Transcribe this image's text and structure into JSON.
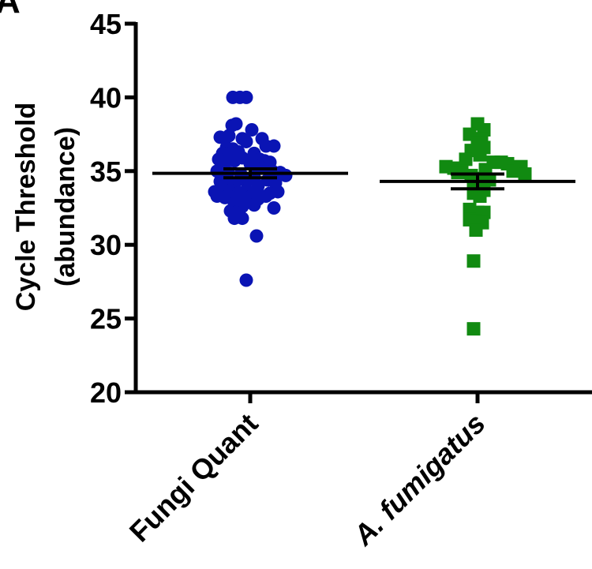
{
  "panel_letter": "A",
  "chart_data": {
    "type": "scatter",
    "ylabel_line1": "Cycle Threshold",
    "ylabel_line2": "(abundance)",
    "ylim": [
      20,
      45
    ],
    "yticks": [
      20,
      25,
      30,
      35,
      40,
      45
    ],
    "categories": [
      "Fungi Quant",
      "A. fumigatus"
    ],
    "series": [
      {
        "name": "Fungi Quant",
        "marker": "circle",
        "color": "#0a14b4",
        "mean": 34.85,
        "sem": 0.3,
        "points": [
          [
            -0.22,
            40.0
          ],
          [
            -0.13,
            40.0
          ],
          [
            -0.05,
            40.0
          ],
          [
            -0.23,
            38.1
          ],
          [
            -0.18,
            38.2
          ],
          [
            0.02,
            37.8
          ],
          [
            -0.38,
            37.3
          ],
          [
            -0.27,
            37.4
          ],
          [
            -0.1,
            37.2
          ],
          [
            -0.05,
            37.0
          ],
          [
            0.15,
            37.2
          ],
          [
            -0.3,
            36.6
          ],
          [
            -0.22,
            36.5
          ],
          [
            0.2,
            36.7
          ],
          [
            0.3,
            36.7
          ],
          [
            -0.35,
            36.2
          ],
          [
            -0.25,
            36.2
          ],
          [
            -0.15,
            36.3
          ],
          [
            0.05,
            36.2
          ],
          [
            0.12,
            35.8
          ],
          [
            -0.4,
            35.8
          ],
          [
            -0.32,
            35.6
          ],
          [
            -0.2,
            35.7
          ],
          [
            -0.1,
            35.9
          ],
          [
            0.0,
            35.5
          ],
          [
            0.08,
            35.3
          ],
          [
            0.18,
            35.7
          ],
          [
            0.25,
            35.6
          ],
          [
            -0.42,
            35.0
          ],
          [
            -0.28,
            34.9
          ],
          [
            -0.12,
            34.8
          ],
          [
            0.05,
            34.6
          ],
          [
            0.15,
            35.2
          ],
          [
            0.28,
            35.0
          ],
          [
            0.38,
            34.9
          ],
          [
            0.45,
            34.7
          ],
          [
            -0.38,
            34.3
          ],
          [
            -0.3,
            34.4
          ],
          [
            -0.2,
            34.1
          ],
          [
            -0.05,
            34.3
          ],
          [
            0.1,
            34.0
          ],
          [
            0.22,
            34.4
          ],
          [
            0.32,
            34.2
          ],
          [
            -0.45,
            33.6
          ],
          [
            -0.35,
            33.6
          ],
          [
            -0.25,
            33.7
          ],
          [
            -0.15,
            33.5
          ],
          [
            -0.05,
            33.7
          ],
          [
            0.05,
            33.6
          ],
          [
            0.15,
            33.3
          ],
          [
            0.25,
            33.5
          ],
          [
            0.35,
            33.6
          ],
          [
            -0.42,
            33.3
          ],
          [
            -0.32,
            33.2
          ],
          [
            -0.22,
            33.2
          ],
          [
            -0.12,
            33.4
          ],
          [
            -0.02,
            33.2
          ],
          [
            0.1,
            33.1
          ],
          [
            0.2,
            33.3
          ],
          [
            -0.2,
            32.8
          ],
          [
            -0.1,
            32.6
          ],
          [
            0.05,
            32.7
          ],
          [
            0.3,
            32.5
          ],
          [
            -0.25,
            32.3
          ],
          [
            -0.18,
            32.2
          ],
          [
            -0.2,
            31.8
          ],
          [
            -0.1,
            31.8
          ],
          [
            0.08,
            30.6
          ],
          [
            -0.05,
            27.6
          ]
        ]
      },
      {
        "name": "A. fumigatus",
        "marker": "square",
        "color": "#118a11",
        "mean": 34.3,
        "sem": 0.5,
        "points": [
          [
            0.0,
            38.2
          ],
          [
            0.08,
            37.8
          ],
          [
            -0.1,
            37.5
          ],
          [
            0.05,
            37.2
          ],
          [
            0.0,
            36.9
          ],
          [
            0.08,
            36.6
          ],
          [
            -0.08,
            36.4
          ],
          [
            0.03,
            36.1
          ],
          [
            -0.15,
            35.8
          ],
          [
            0.2,
            35.6
          ],
          [
            0.3,
            35.6
          ],
          [
            0.38,
            35.5
          ],
          [
            -0.4,
            35.3
          ],
          [
            -0.3,
            35.2
          ],
          [
            -0.2,
            35.0
          ],
          [
            0.1,
            35.1
          ],
          [
            0.45,
            35.0
          ],
          [
            0.55,
            35.3
          ],
          [
            0.6,
            34.8
          ],
          [
            -0.25,
            34.9
          ],
          [
            -0.08,
            34.7
          ],
          [
            0.02,
            34.5
          ],
          [
            0.15,
            34.4
          ],
          [
            -0.05,
            34.0
          ],
          [
            0.08,
            33.7
          ],
          [
            -0.05,
            33.5
          ],
          [
            0.03,
            33.3
          ],
          [
            -0.1,
            32.4
          ],
          [
            0.0,
            32.2
          ],
          [
            0.08,
            32.2
          ],
          [
            -0.1,
            31.7
          ],
          [
            -0.02,
            31.6
          ],
          [
            0.06,
            31.5
          ],
          [
            -0.02,
            31.0
          ],
          [
            -0.05,
            28.9
          ],
          [
            -0.05,
            24.3
          ]
        ]
      }
    ]
  }
}
